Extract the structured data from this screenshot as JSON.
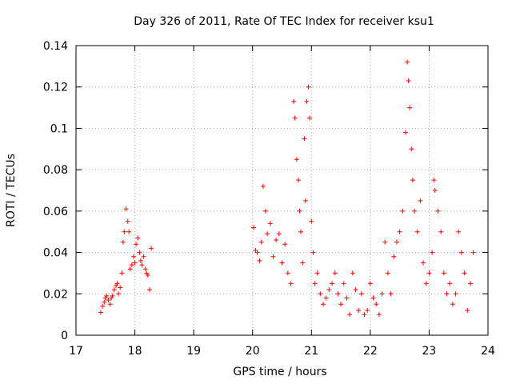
{
  "chart_data": {
    "type": "scatter",
    "title": "Day 326 of 2011, Rate Of TEC Index for receiver ksu1",
    "xlabel": "GPS time / hours",
    "ylabel": "ROTI / TECUs",
    "xlim": [
      17,
      24
    ],
    "ylim": [
      0,
      0.14
    ],
    "x_ticks": [
      17,
      18,
      19,
      20,
      21,
      22,
      23,
      24
    ],
    "y_ticks": [
      0,
      0.02,
      0.04,
      0.06,
      0.08,
      0.1,
      0.12,
      0.14
    ],
    "y_tick_labels": [
      "0",
      "0.02",
      "0.04",
      "0.06",
      "0.08",
      "0.1",
      "0.12",
      "0.14"
    ],
    "grid": true,
    "marker": "plus",
    "color": "#ff0000",
    "series": [
      {
        "x": [
          17.42,
          17.45,
          17.48,
          17.5,
          17.52,
          17.55,
          17.58,
          17.6,
          17.62,
          17.65,
          17.68,
          17.7,
          17.72,
          17.75,
          17.78,
          17.8,
          17.82,
          17.85,
          17.88,
          17.9,
          17.92,
          17.95,
          17.98,
          18.0,
          18.02,
          18.05,
          18.08,
          18.1,
          18.12,
          18.15,
          18.18,
          18.2,
          18.22,
          18.25,
          18.28,
          20.02,
          20.05,
          20.08,
          20.12,
          20.15,
          20.18,
          20.22,
          20.25,
          20.3,
          20.35,
          20.4,
          20.45,
          20.5,
          20.55,
          20.6,
          20.65,
          20.7,
          20.72,
          20.75,
          20.78,
          20.8,
          20.82,
          20.85,
          20.88,
          20.9,
          20.92,
          20.95,
          20.97,
          21.0,
          21.03,
          21.06,
          21.1,
          21.15,
          21.2,
          21.25,
          21.3,
          21.35,
          21.4,
          21.45,
          21.5,
          21.55,
          21.6,
          21.65,
          21.7,
          21.75,
          21.8,
          21.85,
          21.9,
          21.95,
          22.0,
          22.05,
          22.1,
          22.15,
          22.2,
          22.25,
          22.3,
          22.35,
          22.4,
          22.45,
          22.5,
          22.55,
          22.6,
          22.63,
          22.65,
          22.67,
          22.7,
          22.72,
          22.75,
          22.8,
          22.85,
          22.9,
          22.95,
          23.0,
          23.05,
          23.08,
          23.1,
          23.15,
          23.2,
          23.25,
          23.3,
          23.35,
          23.4,
          23.45,
          23.5,
          23.55,
          23.6,
          23.65,
          23.7,
          23.75
        ],
        "y": [
          0.011,
          0.014,
          0.016,
          0.018,
          0.019,
          0.017,
          0.015,
          0.018,
          0.019,
          0.022,
          0.024,
          0.025,
          0.02,
          0.023,
          0.03,
          0.045,
          0.05,
          0.061,
          0.055,
          0.05,
          0.032,
          0.034,
          0.038,
          0.035,
          0.044,
          0.047,
          0.04,
          0.036,
          0.034,
          0.038,
          0.032,
          0.03,
          0.029,
          0.022,
          0.042,
          0.052,
          0.041,
          0.04,
          0.036,
          0.045,
          0.072,
          0.06,
          0.049,
          0.054,
          0.038,
          0.046,
          0.049,
          0.035,
          0.044,
          0.03,
          0.025,
          0.113,
          0.105,
          0.085,
          0.075,
          0.06,
          0.05,
          0.035,
          0.095,
          0.065,
          0.113,
          0.12,
          0.105,
          0.055,
          0.04,
          0.025,
          0.03,
          0.02,
          0.015,
          0.018,
          0.022,
          0.025,
          0.03,
          0.02,
          0.015,
          0.025,
          0.018,
          0.01,
          0.03,
          0.022,
          0.012,
          0.02,
          0.01,
          0.012,
          0.025,
          0.018,
          0.015,
          0.01,
          0.02,
          0.045,
          0.03,
          0.02,
          0.038,
          0.045,
          0.05,
          0.06,
          0.098,
          0.132,
          0.123,
          0.11,
          0.09,
          0.075,
          0.06,
          0.05,
          0.065,
          0.035,
          0.025,
          0.03,
          0.04,
          0.075,
          0.07,
          0.06,
          0.05,
          0.03,
          0.02,
          0.025,
          0.015,
          0.02,
          0.05,
          0.04,
          0.03,
          0.012,
          0.025,
          0.04
        ]
      }
    ]
  }
}
